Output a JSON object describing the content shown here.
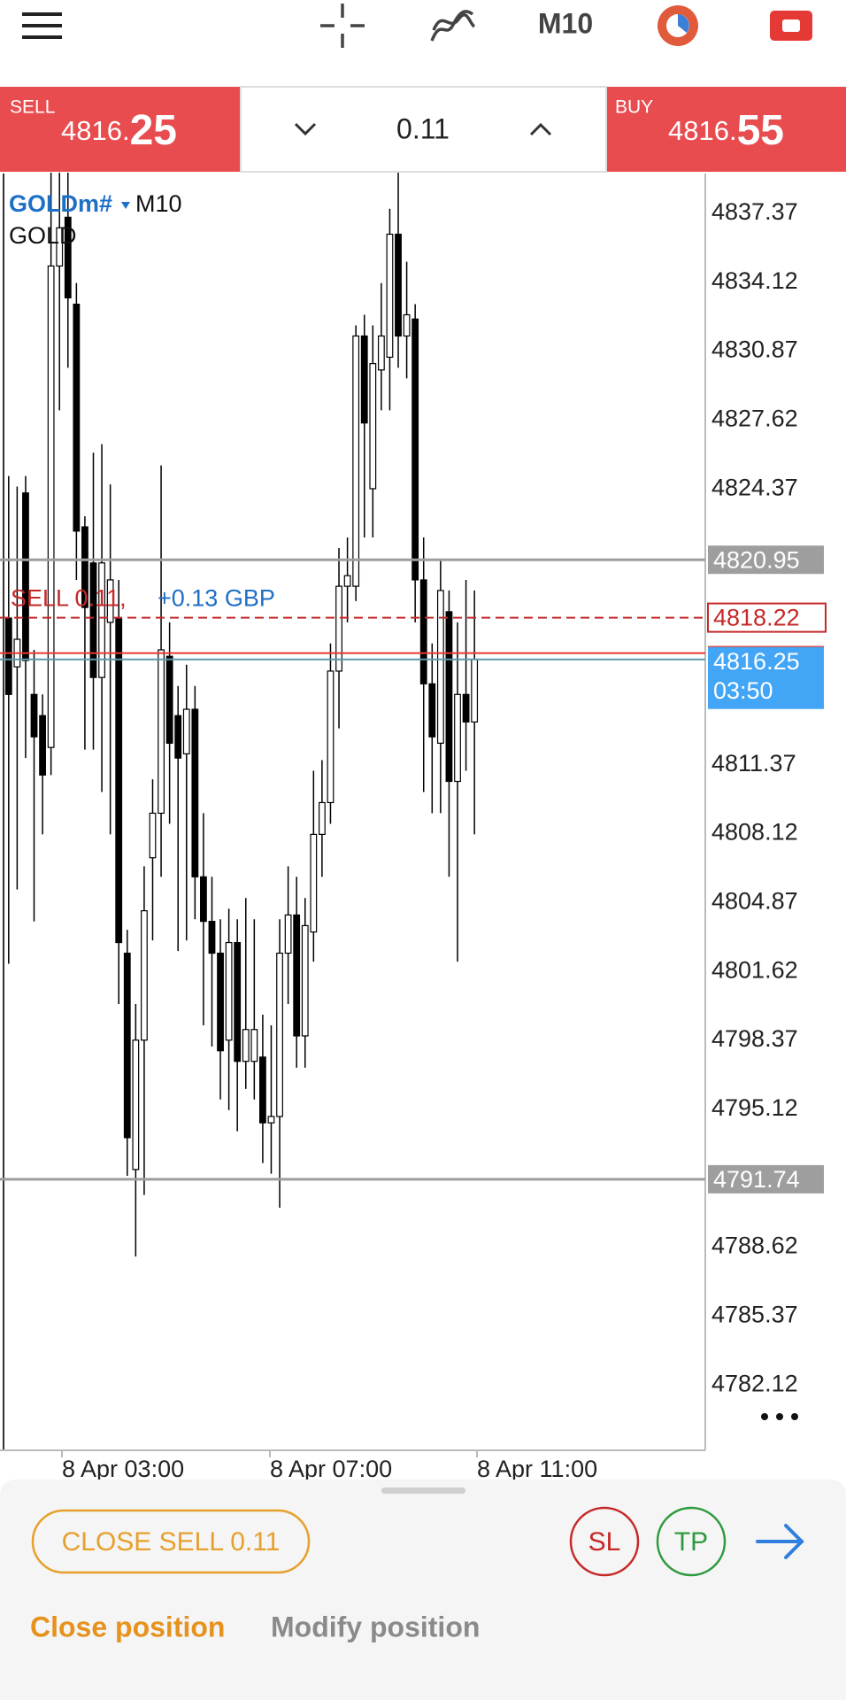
{
  "toolbar": {
    "timeframe": "M10"
  },
  "trade_bar": {
    "sell": {
      "label": "SELL",
      "price_main": "4816.",
      "price_pips": "25"
    },
    "volume": "0.11",
    "buy": {
      "label": "BUY",
      "price_main": "4816.",
      "price_pips": "55"
    }
  },
  "chart_data": {
    "type": "candlestick",
    "symbol": "GOLDm#",
    "timeframe": "M10",
    "description": "GOLD",
    "up_color": "#ffffff",
    "down_color": "#000000",
    "open": [
      4818.2,
      4815.9,
      4824.1,
      4814.6,
      4813.6,
      4812.1,
      4834.8,
      4837.1,
      4833.0,
      4822.5,
      4820.8,
      4815.4,
      4818.0,
      4818.2,
      4802.4,
      4792.2,
      4798.3,
      4806.9,
      4809.0,
      4816.4,
      4813.6,
      4811.8,
      4813.9,
      4806.0,
      4803.9,
      4802.4,
      4798.3,
      4802.9,
      4797.3,
      4797.3,
      4797.5,
      4794.4,
      4794.7,
      4802.4,
      4804.2,
      4798.5,
      4803.4,
      4808.0,
      4809.5,
      4815.7,
      4819.7,
      4819.7,
      4831.5,
      4824.3,
      4829.9,
      4830.5,
      4836.3,
      4831.5,
      4832.3,
      4820.0,
      4815.1,
      4812.3,
      4818.5,
      4810.5,
      4814.6,
      4813.3
    ],
    "high": [
      4824.9,
      4824.4,
      4824.9,
      4816.7,
      4814.6,
      4839.2,
      4839.2,
      4839.2,
      4834.0,
      4823.0,
      4826.0,
      4826.4,
      4824.5,
      4820.0,
      4803.5,
      4800.0,
      4806.5,
      4810.6,
      4825.4,
      4818.0,
      4815.0,
      4816.0,
      4815.0,
      4809.0,
      4806.0,
      4804.0,
      4804.5,
      4804.0,
      4805.0,
      4804.0,
      4799.5,
      4799.0,
      4804.0,
      4806.5,
      4806.0,
      4805.0,
      4811.0,
      4811.5,
      4817.0,
      4821.5,
      4822.0,
      4832.0,
      4832.5,
      4832.0,
      4834.0,
      4837.5,
      4839.2,
      4835.0,
      4833.0,
      4822.0,
      4817.0,
      4821.0,
      4819.5,
      4818.0,
      4820.0,
      4819.5
    ],
    "low": [
      4801.9,
      4805.4,
      4811.6,
      4803.9,
      4808.0,
      4810.8,
      4828.0,
      4830.0,
      4820.0,
      4812.0,
      4812.0,
      4810.0,
      4808.0,
      4800.0,
      4791.9,
      4788.1,
      4791.0,
      4803.0,
      4806.0,
      4808.5,
      4802.5,
      4803.0,
      4804.0,
      4799.0,
      4798.0,
      4795.5,
      4795.0,
      4794.0,
      4796.0,
      4795.5,
      4792.5,
      4792.0,
      4790.4,
      4800.0,
      4797.0,
      4797.0,
      4802.0,
      4806.0,
      4808.5,
      4813.0,
      4818.0,
      4819.0,
      4822.0,
      4822.0,
      4828.0,
      4828.0,
      4830.0,
      4829.5,
      4818.0,
      4810.0,
      4809.0,
      4809.0,
      4806.0,
      4802.0,
      4811.0,
      4808.0
    ],
    "close": [
      4814.6,
      4817.2,
      4816.2,
      4812.6,
      4810.8,
      4834.8,
      4836.6,
      4833.3,
      4822.3,
      4818.7,
      4815.4,
      4820.8,
      4820.0,
      4802.9,
      4793.7,
      4798.3,
      4804.4,
      4809.0,
      4816.7,
      4812.3,
      4811.6,
      4813.9,
      4806.0,
      4803.9,
      4802.4,
      4797.8,
      4802.9,
      4797.3,
      4798.8,
      4798.8,
      4794.4,
      4794.7,
      4802.4,
      4804.2,
      4798.5,
      4803.7,
      4808.0,
      4809.5,
      4815.7,
      4819.7,
      4820.2,
      4831.5,
      4827.4,
      4830.2,
      4831.5,
      4836.3,
      4831.5,
      4832.5,
      4820.0,
      4815.1,
      4812.6,
      4819.5,
      4810.5,
      4814.6,
      4813.3,
      4816.25
    ],
    "ylim": [
      4778.96,
      4839.16
    ],
    "yticks": [
      4837.37,
      4834.12,
      4830.87,
      4827.62,
      4824.37,
      4811.37,
      4808.12,
      4804.87,
      4801.62,
      4798.37,
      4795.12,
      4788.62,
      4785.37,
      4782.12
    ],
    "time_labels": [
      "8 Apr 03:00",
      "8 Apr 07:00",
      "8 Apr 11:00"
    ],
    "price_lines": [
      {
        "value": 4820.95,
        "color": "#9e9e9e"
      },
      {
        "value": 4791.74,
        "color": "#9e9e9e"
      }
    ],
    "order_line": {
      "label": "SELL 0.11,",
      "profit": "+0.13 GBP",
      "value": 4818.22,
      "color": "#c62828"
    },
    "ask": {
      "value": 4816.55,
      "color": "#e53935"
    },
    "bid": {
      "value": 4816.25,
      "countdown": "03:50",
      "color": "#42a5f5"
    }
  },
  "panel": {
    "close_button": "CLOSE SELL 0.11",
    "sl": "SL",
    "tp": "TP",
    "tabs": [
      "Close position",
      "Modify position"
    ]
  }
}
